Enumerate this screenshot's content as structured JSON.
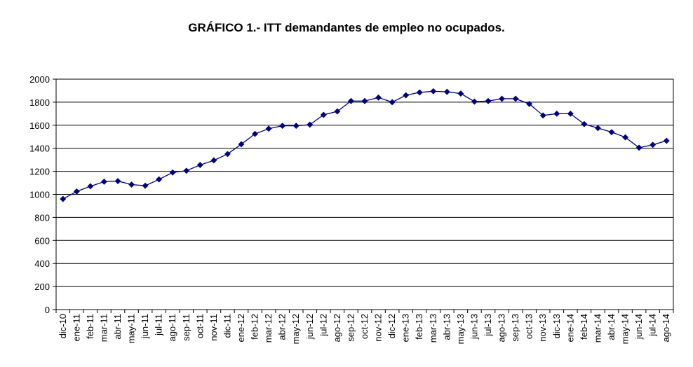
{
  "chart_data": {
    "type": "line",
    "title": "GRÁFICO 1.- ITT demandantes de empleo no ocupados.",
    "xlabel": "",
    "ylabel": "",
    "ylim": [
      0,
      2000
    ],
    "yticks": [
      0,
      200,
      400,
      600,
      800,
      1000,
      1200,
      1400,
      1600,
      1800,
      2000
    ],
    "grid": true,
    "legend": "none",
    "series_color": "#000080",
    "categories": [
      "dic-10",
      "ene-11",
      "feb-11",
      "mar-11",
      "abr-11",
      "may-11",
      "jun-11",
      "jul-11",
      "ago-11",
      "sep-11",
      "oct-11",
      "nov-11",
      "dic-11",
      "ene-12",
      "feb-12",
      "mar-12",
      "abr-12",
      "may-12",
      "jun-12",
      "jul-12",
      "ago-12",
      "sep-12",
      "oct-12",
      "nov-12",
      "dic-12",
      "ene-13",
      "feb-13",
      "mar-13",
      "abr-13",
      "may-13",
      "jun-13",
      "jul-13",
      "ago-13",
      "sep-13",
      "oct-13",
      "nov-13",
      "dic-13",
      "ene-14",
      "feb-14",
      "mar-14",
      "abr-14",
      "may-14",
      "jun-14",
      "jul-14",
      "ago-14"
    ],
    "values": [
      960,
      1025,
      1070,
      1110,
      1115,
      1085,
      1075,
      1130,
      1190,
      1205,
      1255,
      1295,
      1350,
      1435,
      1525,
      1570,
      1595,
      1595,
      1605,
      1690,
      1720,
      1810,
      1810,
      1840,
      1800,
      1860,
      1885,
      1895,
      1890,
      1875,
      1805,
      1810,
      1830,
      1830,
      1785,
      1685,
      1700,
      1700,
      1610,
      1575,
      1540,
      1495,
      1405,
      1430,
      1465
    ]
  }
}
